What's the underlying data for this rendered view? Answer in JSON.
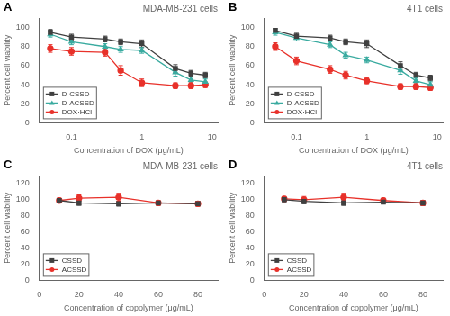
{
  "chart_data": [
    {
      "type": "line",
      "title": "MDA-MB-231 cells",
      "annotations": [
        "A"
      ],
      "xlabel": "Concentration of DOX (μg/mL)",
      "ylabel": "Percent cell viability",
      "x": [
        0.05,
        0.1,
        0.3,
        0.5,
        1.0,
        3.0,
        5.0,
        8.0
      ],
      "series": [
        {
          "name": "D-CSSD",
          "color": "#404040",
          "marker": "square",
          "values": [
            95,
            90,
            88,
            85,
            83,
            57,
            52,
            50
          ],
          "yerr": [
            3,
            3,
            3,
            3,
            4,
            4,
            3,
            3
          ]
        },
        {
          "name": "D-ACSSD",
          "color": "#3aaba0",
          "marker": "triangle",
          "values": [
            93,
            85,
            80,
            77,
            76,
            53,
            45,
            43
          ],
          "yerr": [
            3,
            3,
            3,
            3,
            3,
            4,
            3,
            3
          ]
        },
        {
          "name": "DOX·HCl",
          "color": "#e8312a",
          "marker": "circle",
          "values": [
            78,
            75,
            74,
            55,
            42,
            39,
            39,
            40
          ],
          "yerr": [
            4,
            4,
            4,
            5,
            4,
            3,
            3,
            3
          ]
        }
      ],
      "log": "x",
      "xlim": [
        0.035,
        12
      ],
      "xticks": [
        0.1,
        1,
        10
      ],
      "ylim": [
        0,
        110
      ],
      "yticks": [
        0,
        20,
        40,
        60,
        80,
        100
      ],
      "grid": false,
      "legend": "lower left"
    },
    {
      "type": "line",
      "title": "4T1 cells",
      "annotations": [
        "B"
      ],
      "xlabel": "Concentration of DOX (μg/mL)",
      "ylabel": "Percent cell viability",
      "x": [
        0.05,
        0.1,
        0.3,
        0.5,
        1.0,
        3.0,
        5.0,
        8.0
      ],
      "series": [
        {
          "name": "D-CSSD",
          "color": "#404040",
          "marker": "square",
          "values": [
            97,
            91,
            89,
            85,
            83,
            60,
            50,
            47
          ],
          "yerr": [
            2,
            3,
            3,
            3,
            4,
            4,
            3,
            3
          ]
        },
        {
          "name": "D-ACSSD",
          "color": "#3aaba0",
          "marker": "triangle",
          "values": [
            95,
            89,
            82,
            71,
            66,
            55,
            44,
            40
          ],
          "yerr": [
            3,
            3,
            3,
            3,
            3,
            4,
            3,
            3
          ]
        },
        {
          "name": "DOX·HCl",
          "color": "#e8312a",
          "marker": "circle",
          "values": [
            80,
            65,
            56,
            50,
            44,
            38,
            38,
            37
          ],
          "yerr": [
            4,
            4,
            4,
            4,
            3,
            3,
            3,
            3
          ]
        }
      ],
      "log": "x",
      "xlim": [
        0.035,
        12
      ],
      "xticks": [
        0.1,
        1,
        10
      ],
      "ylim": [
        0,
        110
      ],
      "yticks": [
        0,
        20,
        40,
        60,
        80,
        100
      ],
      "grid": false,
      "legend": "lower left"
    },
    {
      "type": "line",
      "title": "MDA-MB-231 cells",
      "annotations": [
        "C"
      ],
      "xlabel": "Concentration of copolymer (μg/mL)",
      "ylabel": "Percent cell viability",
      "x": [
        10,
        20,
        40,
        60,
        80
      ],
      "series": [
        {
          "name": "CSSD",
          "color": "#404040",
          "marker": "square",
          "values": [
            99,
            96,
            95,
            96,
            95
          ],
          "yerr": [
            2,
            3,
            3,
            2,
            3
          ]
        },
        {
          "name": "ACSSD",
          "color": "#e8312a",
          "marker": "circle",
          "values": [
            99,
            102,
            103,
            96,
            95
          ],
          "yerr": [
            3,
            4,
            5,
            3,
            3
          ]
        }
      ],
      "xlim": [
        0,
        90
      ],
      "xticks": [
        0,
        20,
        40,
        60,
        80
      ],
      "ylim": [
        0,
        130
      ],
      "yticks": [
        0,
        20,
        40,
        60,
        80,
        100,
        120
      ],
      "grid": false,
      "legend": "lower left"
    },
    {
      "type": "line",
      "title": "4T1 cells",
      "annotations": [
        "D"
      ],
      "xlabel": "Concentration of copolymer (μg/mL)",
      "ylabel": "Percent cell viability",
      "x": [
        10,
        20,
        40,
        60,
        80
      ],
      "series": [
        {
          "name": "CSSD",
          "color": "#404040",
          "marker": "square",
          "values": [
            100,
            98,
            96,
            97,
            96
          ],
          "yerr": [
            2,
            3,
            3,
            2,
            3
          ]
        },
        {
          "name": "ACSSD",
          "color": "#e8312a",
          "marker": "circle",
          "values": [
            101,
            100,
            103,
            99,
            96
          ],
          "yerr": [
            3,
            4,
            5,
            3,
            3
          ]
        }
      ],
      "xlim": [
        0,
        90
      ],
      "xticks": [
        0,
        20,
        40,
        60,
        80
      ],
      "ylim": [
        0,
        130
      ],
      "yticks": [
        0,
        20,
        40,
        60,
        80,
        100,
        120
      ],
      "grid": false,
      "legend": "lower left"
    }
  ]
}
